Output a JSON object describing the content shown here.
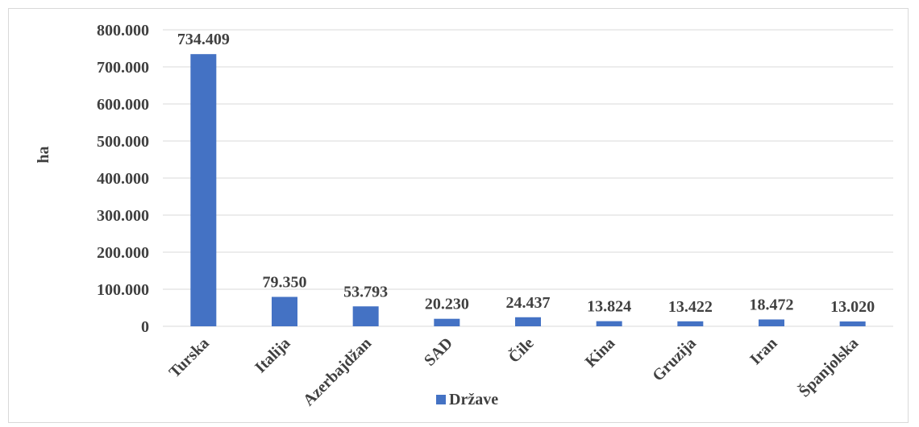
{
  "chart_data": {
    "type": "bar",
    "categories": [
      "Turska",
      "Italija",
      "Azerbajdžan",
      "SAD",
      "Čile",
      "Kina",
      "Gruzija",
      "Iran",
      "Španjolska"
    ],
    "series": [
      {
        "name": "Države",
        "values": [
          734409,
          79350,
          53793,
          20230,
          24437,
          13824,
          13422,
          18472,
          13020
        ],
        "labels": [
          "734.409",
          "79.350",
          "53.793",
          "20.230",
          "24.437",
          "13.824",
          "13.422",
          "18.472",
          "13.020"
        ],
        "color": "#4472C4"
      }
    ],
    "ylabel": "ha",
    "ylim": [
      0,
      800000
    ],
    "yticks": [
      0,
      100000,
      200000,
      300000,
      400000,
      500000,
      600000,
      700000,
      800000
    ],
    "ytick_labels": [
      "0",
      "100.000",
      "200.000",
      "300.000",
      "400.000",
      "500.000",
      "600.000",
      "700.000",
      "800.000"
    ],
    "grid": true,
    "legend_position": "bottom"
  }
}
